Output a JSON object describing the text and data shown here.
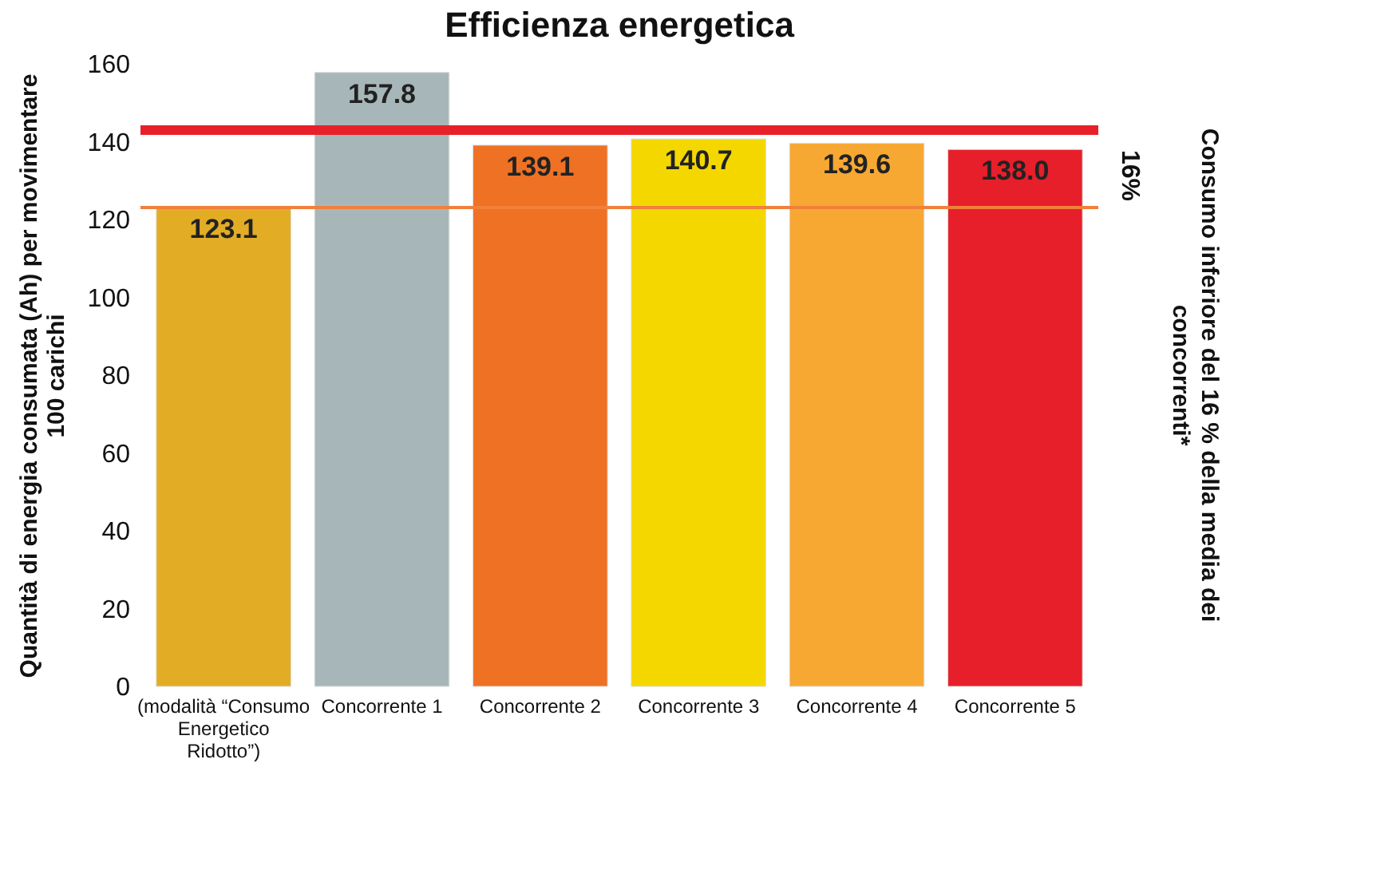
{
  "chart_data": {
    "type": "bar",
    "title": "Efficienza energetica",
    "ylabel": "Quantità di energia consumata (Ah) per movimentare 100 carichi",
    "categories": [
      "(modalità “Consumo Energetico Ridotto”)",
      "Concorrente 1",
      "Concorrente 2",
      "Concorrente 3",
      "Concorrente 4",
      "Concorrente 5"
    ],
    "values": [
      123.1,
      157.8,
      139.1,
      140.7,
      139.6,
      138.0
    ],
    "value_labels": [
      "123.1",
      "157.8",
      "139.1",
      "140.7",
      "139.6",
      "138.0"
    ],
    "colors": [
      "#e2ac25",
      "#a7b7b9",
      "#ef7124",
      "#f5d700",
      "#f7a833",
      "#e71f2a"
    ],
    "ylim": [
      0,
      160
    ],
    "yticks": [
      0,
      20,
      40,
      60,
      80,
      100,
      120,
      140,
      160
    ],
    "ref_lines": [
      {
        "axis": "y",
        "value": 143.0,
        "color": "#e8202a"
      },
      {
        "axis": "y",
        "value": 123.1,
        "color": "#f0803c"
      }
    ],
    "annotations": [
      "16%",
      "Consumo inferiore del 16 % della media dei concorrenti*"
    ],
    "grid": false
  }
}
